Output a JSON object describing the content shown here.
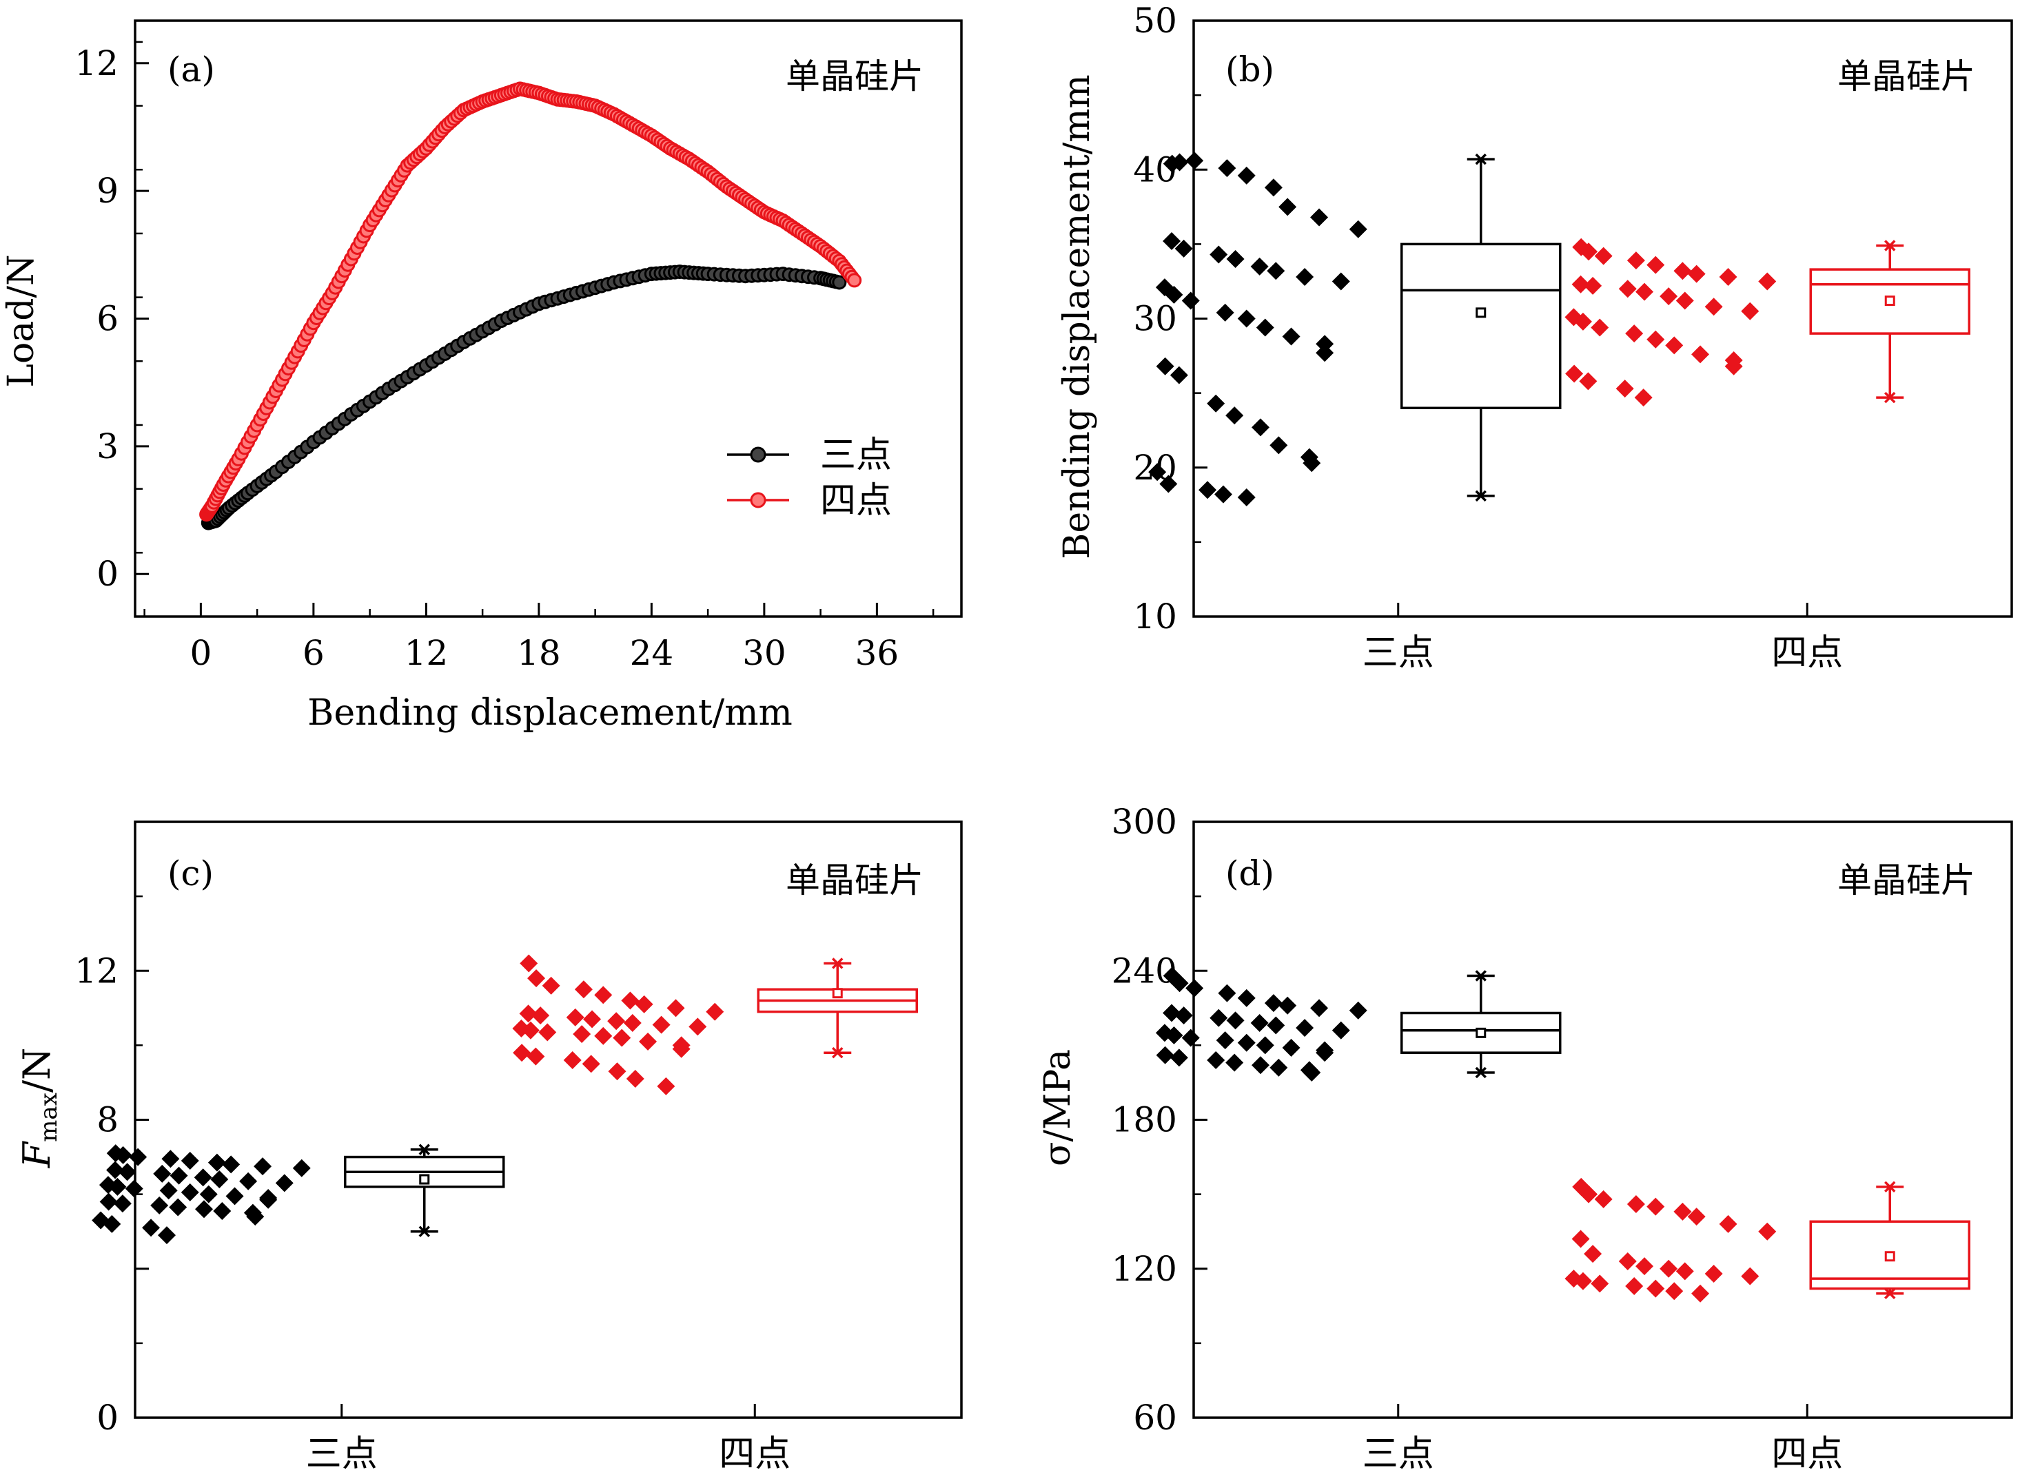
{
  "colors": {
    "three_point": "#000000",
    "four_point": "#e8141b"
  },
  "chart_data": [
    {
      "panel": "(a)",
      "type": "line",
      "title": "单晶硅片",
      "xlabel": "Bending displacement/mm",
      "ylabel": "Load/N",
      "xlim": [
        -3.5,
        40.5
      ],
      "ylim": [
        -1,
        13
      ],
      "xticks": [
        0,
        6,
        12,
        18,
        24,
        30,
        36
      ],
      "yticks": [
        0,
        3,
        6,
        9,
        12
      ],
      "legend_position": "center-right",
      "series": [
        {
          "name": "三点",
          "color": "#000000",
          "x": [
            0.4,
            0.8,
            1.5,
            2.5,
            4,
            6,
            8,
            10,
            12,
            14,
            16,
            18,
            20,
            22,
            24,
            25.5,
            27,
            29,
            31,
            33,
            34
          ],
          "y": [
            1.2,
            1.25,
            1.55,
            1.9,
            2.4,
            3.1,
            3.75,
            4.35,
            4.9,
            5.45,
            5.95,
            6.35,
            6.6,
            6.85,
            7.05,
            7.1,
            7.05,
            7.0,
            7.05,
            6.95,
            6.85
          ]
        },
        {
          "name": "四点",
          "color": "#e8141b",
          "x": [
            0.3,
            0.6,
            1.2,
            2,
            3,
            4,
            5,
            6,
            7,
            8,
            9,
            10,
            11,
            12,
            13,
            14,
            15,
            16,
            17,
            18,
            19,
            20,
            21,
            22,
            23,
            24,
            25,
            26,
            27,
            28,
            29,
            30,
            31,
            32,
            33,
            34,
            34.8
          ],
          "y": [
            1.4,
            1.6,
            2.1,
            2.7,
            3.5,
            4.3,
            5.1,
            5.9,
            6.6,
            7.4,
            8.2,
            8.9,
            9.6,
            10.0,
            10.5,
            10.9,
            11.1,
            11.25,
            11.4,
            11.3,
            11.15,
            11.1,
            11.0,
            10.8,
            10.55,
            10.3,
            10.0,
            9.75,
            9.45,
            9.1,
            8.8,
            8.5,
            8.3,
            8.0,
            7.7,
            7.35,
            6.9
          ]
        }
      ]
    },
    {
      "panel": "(b)",
      "type": "box",
      "title": "单晶硅片",
      "xlabel": "",
      "ylabel": "Bending displacement/mm",
      "ylim": [
        10,
        50
      ],
      "yticks": [
        10,
        20,
        30,
        40,
        50
      ],
      "categories": [
        "三点",
        "四点"
      ],
      "series": [
        {
          "name": "三点",
          "color": "#000000",
          "points": [
            40.4,
            40.5,
            40.6,
            40.1,
            39.6,
            38.8,
            37.5,
            36.8,
            36.0,
            35.2,
            34.7,
            34.3,
            34.0,
            33.5,
            33.2,
            32.8,
            32.5,
            32.1,
            31.6,
            31.2,
            30.4,
            30.0,
            29.4,
            28.8,
            28.3,
            27.7,
            26.8,
            26.2,
            24.3,
            23.5,
            22.7,
            21.5,
            20.7,
            20.3,
            19.7,
            18.9,
            18.5,
            18.2,
            18.0
          ],
          "box": {
            "q1": 24.0,
            "median": 31.9,
            "q3": 35.0,
            "mean": 30.4,
            "whisker_low": 18.1,
            "whisker_high": 40.7
          }
        },
        {
          "name": "四点",
          "color": "#e8141b",
          "points": [
            34.8,
            34.5,
            34.2,
            33.9,
            33.6,
            33.2,
            33.0,
            32.8,
            32.5,
            32.3,
            32.2,
            32.0,
            31.8,
            31.5,
            31.2,
            30.8,
            30.5,
            30.1,
            29.8,
            29.4,
            29.0,
            28.6,
            28.2,
            27.6,
            27.2,
            26.8,
            26.3,
            25.8,
            25.3,
            24.7
          ],
          "box": {
            "q1": 29.0,
            "median": 32.3,
            "q3": 33.3,
            "mean": 31.2,
            "whisker_low": 24.7,
            "whisker_high": 34.9
          }
        }
      ]
    },
    {
      "panel": "(c)",
      "type": "box",
      "title": "单晶硅片",
      "xlabel": "",
      "ylabel": "F",
      "ylabel_sub": "max",
      "ylabel_unit": "/N",
      "ylim": [
        0,
        16
      ],
      "yticks": [
        0,
        4,
        8,
        12
      ],
      "yticks_labeled": [
        0,
        8,
        12
      ],
      "categories": [
        "三点",
        "四点"
      ],
      "series": [
        {
          "name": "三点",
          "color": "#000000",
          "points": [
            7.1,
            7.05,
            7.0,
            6.95,
            6.9,
            6.85,
            6.8,
            6.75,
            6.7,
            6.65,
            6.6,
            6.55,
            6.5,
            6.45,
            6.4,
            6.35,
            6.3,
            6.25,
            6.2,
            6.15,
            6.1,
            6.05,
            6.0,
            5.95,
            5.9,
            5.85,
            5.8,
            5.75,
            5.7,
            5.65,
            5.6,
            5.55,
            5.5,
            5.4,
            5.3,
            5.2,
            5.1,
            4.9
          ],
          "box": {
            "q1": 6.2,
            "median": 6.6,
            "q3": 7.0,
            "mean": 6.4,
            "whisker_low": 5.0,
            "whisker_high": 7.2
          }
        },
        {
          "name": "四点",
          "color": "#e8141b",
          "points": [
            12.2,
            11.8,
            11.6,
            11.5,
            11.35,
            11.2,
            11.1,
            11.0,
            10.9,
            10.85,
            10.8,
            10.75,
            10.7,
            10.65,
            10.6,
            10.55,
            10.5,
            10.45,
            10.4,
            10.35,
            10.3,
            10.25,
            10.2,
            10.1,
            10.0,
            9.9,
            9.8,
            9.7,
            9.6,
            9.5,
            9.3,
            9.1,
            8.9
          ],
          "box": {
            "q1": 10.9,
            "median": 11.2,
            "q3": 11.5,
            "mean": 11.4,
            "whisker_low": 9.8,
            "whisker_high": 12.2
          }
        }
      ]
    },
    {
      "panel": "(d)",
      "type": "box",
      "title": "单晶硅片",
      "xlabel": "",
      "ylabel": "σ/MPa",
      "ylim": [
        60,
        300
      ],
      "yticks": [
        60,
        120,
        180,
        240,
        300
      ],
      "categories": [
        "三点",
        "四点"
      ],
      "series": [
        {
          "name": "三点",
          "color": "#000000",
          "points": [
            238,
            235,
            233,
            231,
            229,
            227,
            226,
            225,
            224,
            223,
            222,
            221,
            220,
            219,
            218,
            217,
            216,
            215,
            214,
            213,
            212,
            211,
            210,
            209,
            208,
            207,
            206,
            205,
            204,
            203,
            202,
            201,
            200,
            199
          ],
          "box": {
            "q1": 207,
            "median": 216,
            "q3": 223,
            "mean": 215,
            "whisker_low": 199,
            "whisker_high": 238
          }
        },
        {
          "name": "四点",
          "color": "#e8141b",
          "points": [
            153,
            150,
            148,
            146,
            145,
            143,
            141,
            138,
            135,
            132,
            126,
            123,
            121,
            120,
            119,
            118,
            117,
            116,
            115,
            114,
            113,
            112,
            111,
            110
          ],
          "box": {
            "q1": 112,
            "median": 116,
            "q3": 139,
            "mean": 125,
            "whisker_low": 110,
            "whisker_high": 153
          }
        }
      ]
    }
  ]
}
